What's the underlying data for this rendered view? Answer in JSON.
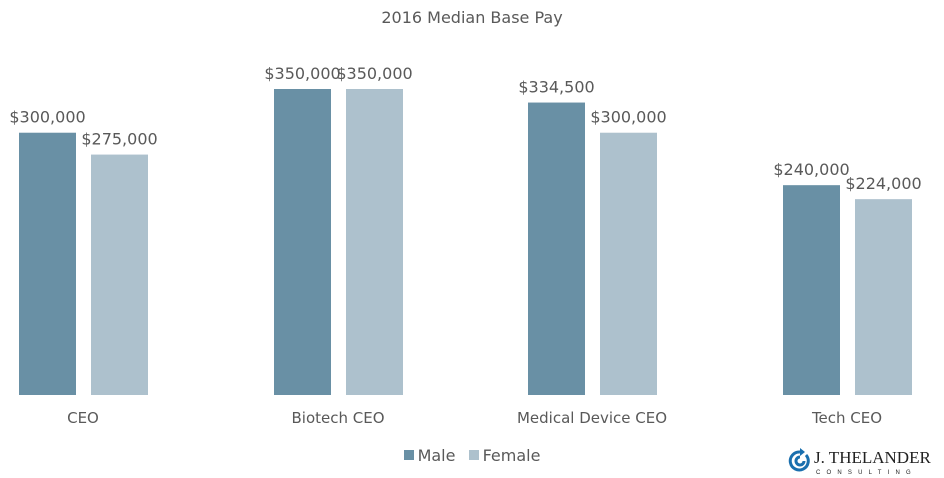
{
  "chart_data": {
    "type": "bar",
    "title": "2016 Median Base Pay",
    "categories": [
      "CEO",
      "Biotech CEO",
      "Medical Device CEO",
      "Tech CEO"
    ],
    "series": [
      {
        "name": "Male",
        "color": "#6990a5",
        "values": [
          300000,
          350000,
          334500,
          240000
        ],
        "labels": [
          "$300,000",
          "$350,000",
          "$334,500",
          "$240,000"
        ]
      },
      {
        "name": "Female",
        "color": "#adc1cd",
        "values": [
          275000,
          350000,
          300000,
          224000
        ],
        "labels": [
          "$275,000",
          "$350,000",
          "$300,000",
          "$224,000"
        ]
      }
    ],
    "ylim": [
      0,
      350000
    ],
    "grid": false,
    "legend": "bottom"
  },
  "logo": {
    "name": "J. THELANDER",
    "sub": "CONSULTING"
  }
}
